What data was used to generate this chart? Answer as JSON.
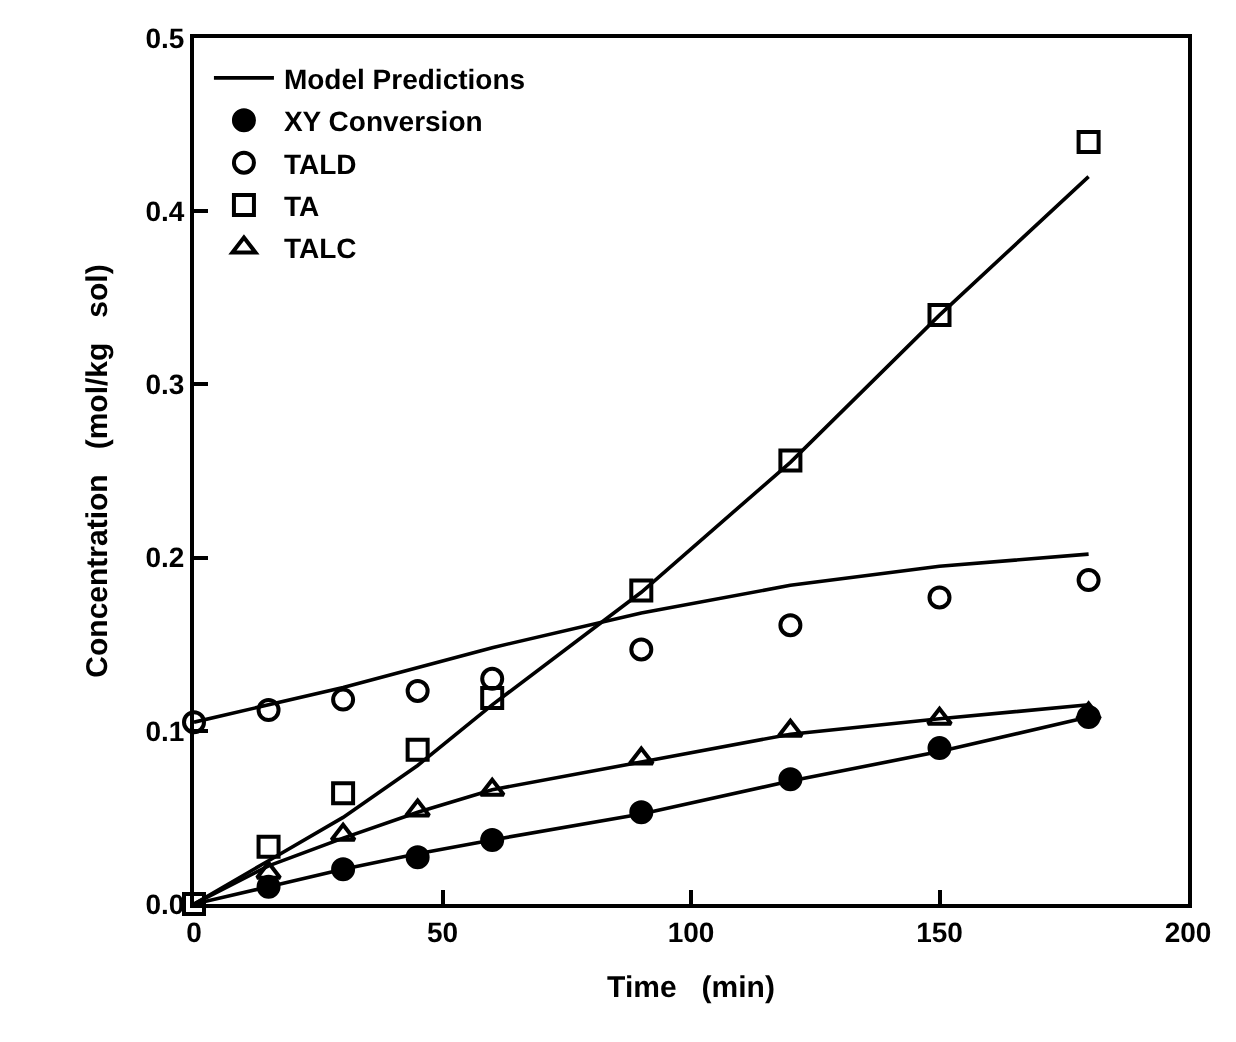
{
  "chart_data": {
    "type": "scatter",
    "xlabel": "Time   (min)",
    "ylabel": "Concentration   (mol/kg   sol)",
    "xlim": [
      0,
      200
    ],
    "xticks": [
      0,
      50,
      100,
      150,
      200
    ],
    "ylim": [
      0,
      0.5
    ],
    "yticks": [
      {
        "value": 0,
        "label": "0.0"
      },
      0.1,
      0.2,
      0.3,
      0.4,
      0.5
    ],
    "legend": "top left",
    "series": [
      {
        "name": "Model Predictions",
        "type": "line",
        "color": "#000000",
        "marker": "none",
        "x": [
          0,
          15,
          30,
          45,
          60,
          90,
          120,
          150,
          180
        ],
        "values": [
          0,
          0.025,
          0.05,
          0.08,
          0.115,
          0.18,
          0.255,
          0.34,
          0.42
        ]
      },
      {
        "name": "XY Conversion",
        "color": "#000000",
        "marker": "circle",
        "x": [
          15,
          30,
          45,
          60,
          90,
          120,
          150,
          180
        ],
        "values": [
          0.01,
          0.02,
          0.027,
          0.037,
          0.053,
          0.072,
          0.09,
          0.108
        ]
      },
      {
        "name": "TALD",
        "color": "#000000",
        "marker": "circle",
        "x": [
          0,
          15,
          30,
          45,
          60,
          90,
          120,
          150,
          180
        ],
        "values": [
          0.105,
          0.112,
          0.118,
          0.123,
          0.13,
          0.147,
          0.161,
          0.177,
          0.187
        ]
      },
      {
        "name": "TA",
        "color": "#000000",
        "marker": "square",
        "x": [
          0,
          15,
          30,
          45,
          60,
          90,
          120,
          150,
          180
        ],
        "values": [
          0,
          0.033,
          0.064,
          0.089,
          0.119,
          0.181,
          0.256,
          0.34,
          0.44
        ]
      },
      {
        "name": "TALC",
        "color": "#000000",
        "marker": "triangle",
        "x": [
          15,
          30,
          45,
          60,
          90,
          120,
          150,
          180
        ],
        "values": [
          0.018,
          0.04,
          0.054,
          0.066,
          0.084,
          0.1,
          0.107,
          0.11
        ]
      },
      {
        "type": "line",
        "color": "#000000",
        "marker": "none",
        "x": [
          0,
          30,
          60,
          90,
          120,
          150,
          180
        ],
        "values": [
          0.105,
          0.125,
          0.148,
          0.168,
          0.184,
          0.195,
          0.202
        ]
      },
      {
        "type": "line",
        "color": "#000000",
        "marker": "none",
        "x": [
          0,
          15,
          30,
          45,
          60,
          90,
          120,
          150,
          180
        ],
        "values": [
          0,
          0.022,
          0.038,
          0.053,
          0.066,
          0.082,
          0.098,
          0.107,
          0.115
        ]
      },
      {
        "type": "line",
        "color": "#000000",
        "marker": "none",
        "x": [
          0,
          15,
          30,
          45,
          60,
          90,
          120,
          150,
          180
        ],
        "values": [
          0,
          0.01,
          0.02,
          0.029,
          0.037,
          0.052,
          0.071,
          0.088,
          0.108
        ]
      }
    ]
  }
}
